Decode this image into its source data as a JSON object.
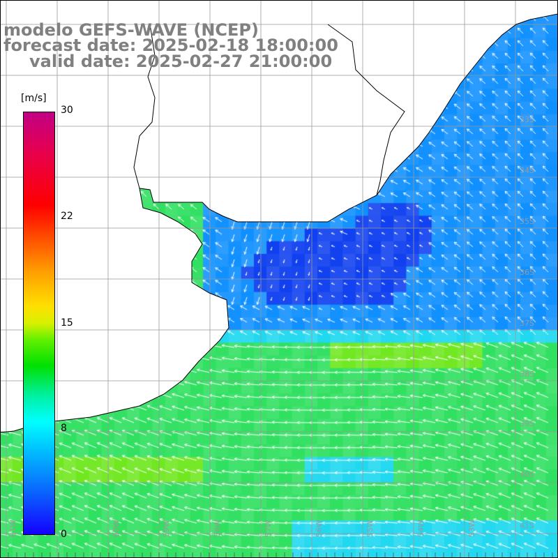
{
  "title": {
    "line1": "modelo GEFS-WAVE (NCEP)",
    "line2": "forecast date: 2025-02-18 18:00:00",
    "line3": "valid date: 2025-02-27 21:00:00"
  },
  "colorbar": {
    "units": "[m/s]",
    "ticks": [
      "30",
      "22",
      "15",
      "8",
      "0"
    ],
    "tick_values": [
      30,
      22,
      15,
      8,
      0
    ],
    "min": 0,
    "max": 30,
    "colors": [
      "#1400ff",
      "#0a64ff",
      "#00c0ff",
      "#00ffff",
      "#00e000",
      "#d8f000",
      "#ffe000",
      "#ff5000",
      "#ff0000",
      "#c20085"
    ]
  },
  "map": {
    "lat_labels": [
      "33S",
      "34S",
      "35S",
      "36S",
      "37S",
      "38S",
      "39S",
      "40S",
      "41S"
    ],
    "lon_labels": [
      "61W",
      "60W",
      "59W",
      "58W",
      "57W",
      "56W",
      "55W",
      "54W",
      "53W"
    ],
    "land_color": "#ffffff",
    "grid_color": "#999999",
    "coast_color": "#000000",
    "arrow_color": "#ffffff",
    "field_description_colors": {
      "calm": "#1040f0",
      "light": "#1090ff",
      "moderate": "#20d8f0",
      "fresh": "#30e060",
      "strong": "#70e820"
    }
  }
}
